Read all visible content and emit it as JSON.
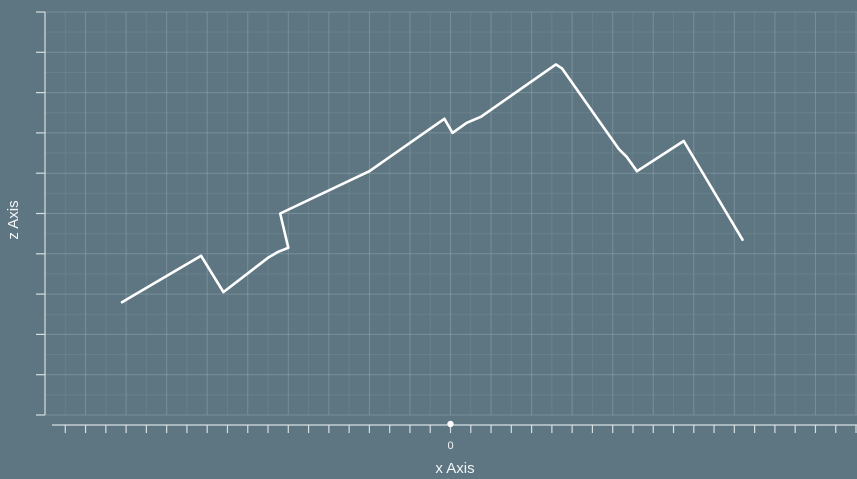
{
  "chart_data": {
    "type": "line",
    "xlabel": "x Axis",
    "ylabel": "z Axis",
    "x_tick_labels": [
      {
        "value": 0,
        "label": "0"
      }
    ],
    "xlim": [
      -20,
      20
    ],
    "ylim": [
      -10,
      10
    ],
    "grid": true,
    "colors": {
      "background": "#5e7682",
      "line": "#ffffff",
      "grid": "#8fa3ad",
      "axis": "#d6dee2"
    },
    "series": [
      {
        "x": [
          -16.2,
          -12.3,
          -11.2,
          -9.0,
          -8.5,
          -8.0,
          -8.4,
          -4.0,
          -0.3,
          0.1,
          0.8,
          1.5,
          5.2,
          5.5,
          8.3,
          8.7,
          9.2,
          11.5,
          14.4
        ],
        "y": [
          -4.4,
          -2.1,
          -3.9,
          -2.2,
          -1.9,
          -1.7,
          0.0,
          2.1,
          4.7,
          4.0,
          4.5,
          4.8,
          7.4,
          7.2,
          3.2,
          2.8,
          2.1,
          3.6,
          -1.3
        ]
      }
    ]
  }
}
